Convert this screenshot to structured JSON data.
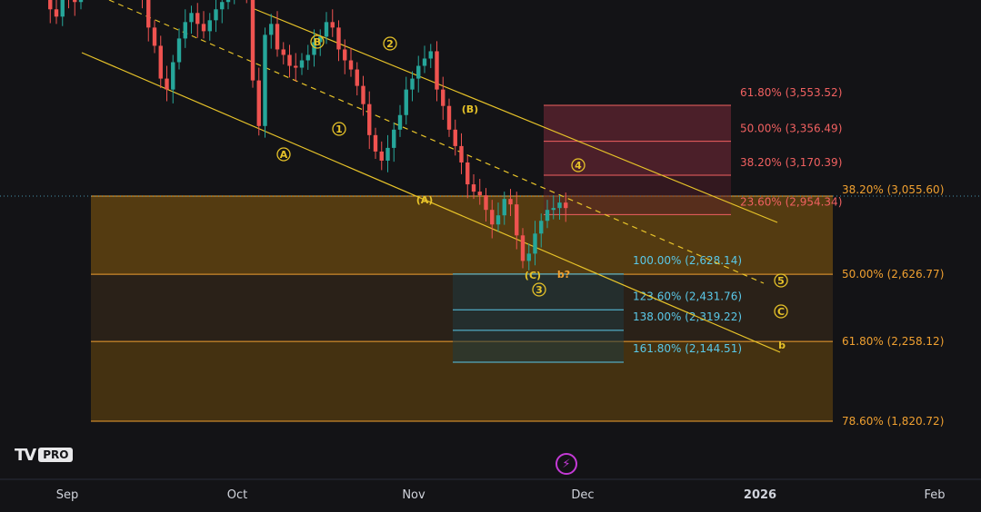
{
  "logo": {
    "mark": "TV",
    "pro_label": "PRO"
  },
  "flash_icon": "lightning-icon",
  "colors": {
    "background": "#131316",
    "bull": "#26a69a",
    "bear": "#ef5350",
    "channel": "#e6c229",
    "fib_orange": "#f0a030",
    "fib_red": "#f06060",
    "fib_blue": "#5ac8e8"
  },
  "chart_data": {
    "type": "candlestick",
    "xlabel": "",
    "ylabel": "",
    "x_ticks": [
      "Sep",
      "Oct",
      "Nov",
      "Dec",
      "2026",
      "Feb"
    ],
    "price_closes": [
      4460,
      4300,
      4250,
      4290,
      4370,
      4330,
      4200,
      4080,
      4040,
      4180,
      4150,
      4120,
      4220,
      4300,
      4480,
      4420,
      4440,
      4410,
      4350,
      4390,
      4320,
      4250,
      4150,
      3980,
      3880,
      3700,
      3640,
      3790,
      3920,
      4010,
      4060,
      4000,
      3960,
      4020,
      4080,
      4120,
      4160,
      4210,
      4230,
      4190,
      3690,
      3440,
      3940,
      4000,
      3860,
      3830,
      3770,
      3760,
      3800,
      3830,
      3900,
      3930,
      4010,
      3980,
      3860,
      3800,
      3750,
      3660,
      3560,
      3390,
      3300,
      3250,
      3320,
      3420,
      3500,
      3640,
      3700,
      3770,
      3810,
      3850,
      3640,
      3550,
      3420,
      3330,
      3240,
      3120,
      3080,
      3060,
      2980,
      2900,
      2950,
      3040,
      3010,
      2840,
      2700,
      2740,
      2850,
      2920,
      2980,
      2990,
      3020,
      2990
    ],
    "fib_right": [
      {
        "label": "38.20% (3,055.60)",
        "value": 3055.6
      },
      {
        "label": "50.00% (2,626.77)",
        "value": 2626.77
      },
      {
        "label": "61.80% (2,258.12)",
        "value": 2258.12
      },
      {
        "label": "78.60% (1,820.72)",
        "value": 1820.72
      }
    ],
    "fib_upper": [
      {
        "label": "61.80% (3,553.52)",
        "value": 3553.52
      },
      {
        "label": "50.00% (3,356.49)",
        "value": 3356.49
      },
      {
        "label": "38.20% (3,170.39)",
        "value": 3170.39
      },
      {
        "label": "23.60% (2,954.34)",
        "value": 2954.34
      }
    ],
    "fib_lower": [
      {
        "label": "100.00% (2,628.14)",
        "value": 2628.14
      },
      {
        "label": "123.60% (2,431.76)",
        "value": 2431.76
      },
      {
        "label": "138.00% (2,319.22)",
        "value": 2319.22
      },
      {
        "label": "161.80% (2,144.51)",
        "value": 2144.51
      }
    ],
    "wave_labels": [
      "A",
      "B",
      "1",
      "2",
      "(B)",
      "(A)",
      "4",
      "(C)",
      "3",
      "b?",
      "5",
      "C",
      "b"
    ]
  }
}
